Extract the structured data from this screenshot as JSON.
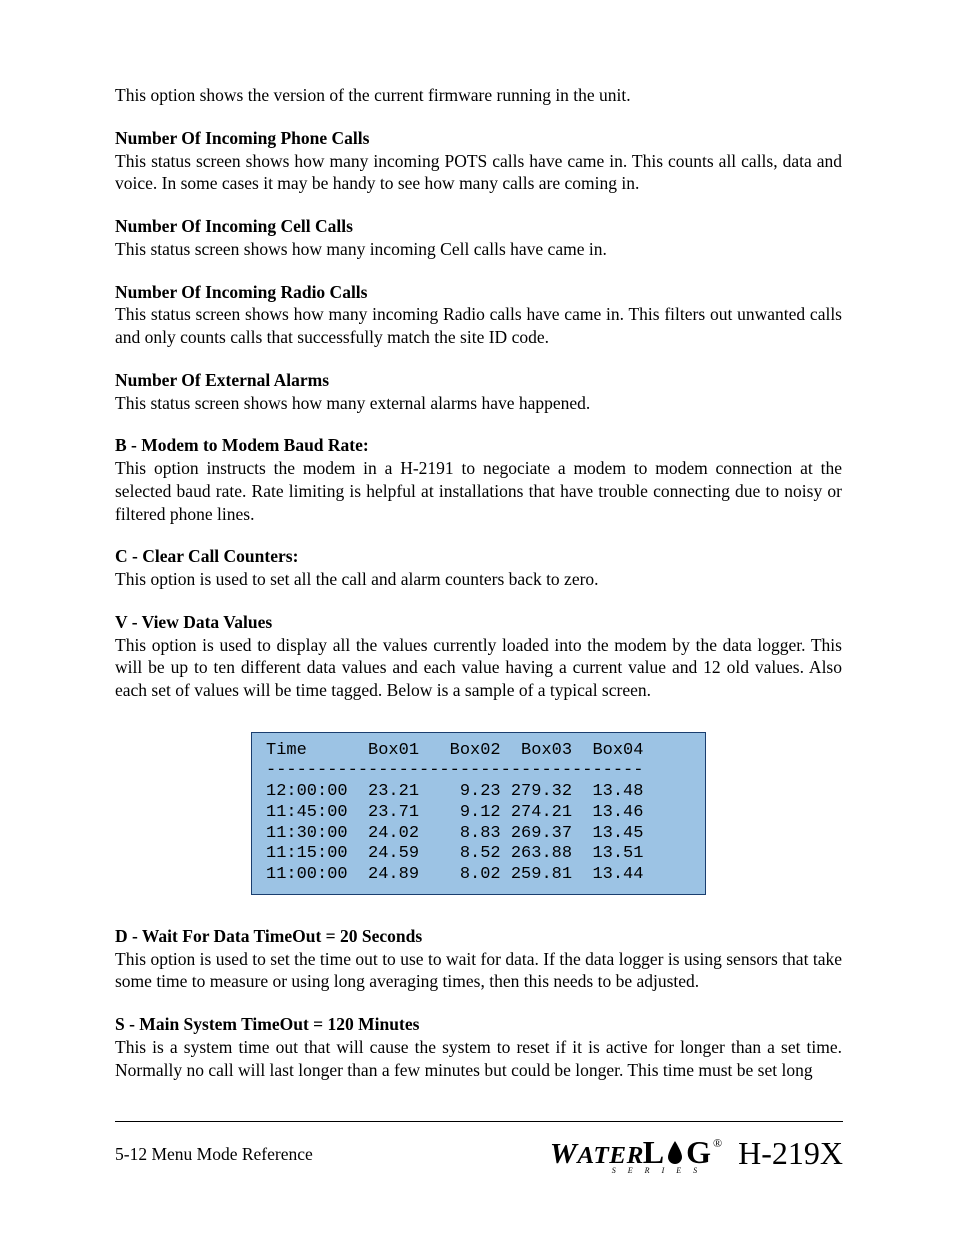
{
  "intro": "This option shows the version of the current firmware running in the unit.",
  "sections": [
    {
      "heading": "Number Of Incoming Phone Calls",
      "body": "This status screen shows how many incoming POTS calls have came in.  This counts all calls, data and voice.  In some cases it may be handy to see how many calls are coming in."
    },
    {
      "heading": "Number Of Incoming Cell Calls",
      "body": "This status screen shows how many incoming Cell calls have came in."
    },
    {
      "heading": "Number Of Incoming Radio Calls",
      "body": "This status screen shows how many incoming Radio calls have came in.  This filters out unwanted calls and only counts calls that successfully match the site ID code."
    },
    {
      "heading": "Number Of External Alarms",
      "body": "This status screen shows how many external alarms have happened."
    },
    {
      "heading": "B - Modem to Modem Baud Rate:",
      "body": "This option instructs the modem in a H-2191 to negociate a modem to modem connection at the selected baud rate.  Rate limiting is helpful at installations that have trouble connecting due to noisy or filtered phone lines."
    },
    {
      "heading": "C - Clear Call Counters:",
      "body": "This option is used to set all the call and alarm counters back to zero."
    },
    {
      "heading": "V - View Data Values",
      "body": "This option is used to display all the values currently loaded into the modem by the data logger.  This will be up to ten different data values and each value having a current value and 12 old values.  Also each set of values will be time tagged.  Below is a sample of a typical screen."
    }
  ],
  "table": {
    "background_color": "#9cc3e4",
    "border_color": "#1a3e6f",
    "font_family": "Courier New",
    "header": "Time      Box01   Box02  Box03  Box04",
    "divider": "-------------------------------------",
    "rows": [
      "12:00:00  23.21    9.23 279.32  13.48",
      "11:45:00  23.71    9.12 274.21  13.46",
      "11:30:00  24.02    8.83 269.37  13.45",
      "11:15:00  24.59    8.52 263.88  13.51",
      "11:00:00  24.89    8.02 259.81  13.44"
    ]
  },
  "sections2": [
    {
      "heading": "D - Wait For Data TimeOut = 20 Seconds",
      "body": "This option is used to set the time out to use to wait for data.  If the data logger is using sensors that take some time to measure or using long averaging times, then this needs to be adjusted."
    },
    {
      "heading": "S - Main System TimeOut = 120 Minutes",
      "body": "This is a system time out that will cause the system to reset if it is active for longer than a set time.  Normally no call will last longer than a few minutes but could be longer.  This time must be set long"
    }
  ],
  "footer": {
    "left": "5-12  Menu Mode Reference",
    "logo_water": "WATER",
    "logo_log_l": "L",
    "logo_log_g": "G",
    "logo_reg": "®",
    "logo_series": "S E R I E S",
    "model": "H-219X"
  },
  "colors": {
    "text": "#000000",
    "page_bg": "#ffffff"
  },
  "typography": {
    "body_font": "Times New Roman",
    "body_size_pt": 13,
    "mono_font": "Courier New"
  }
}
